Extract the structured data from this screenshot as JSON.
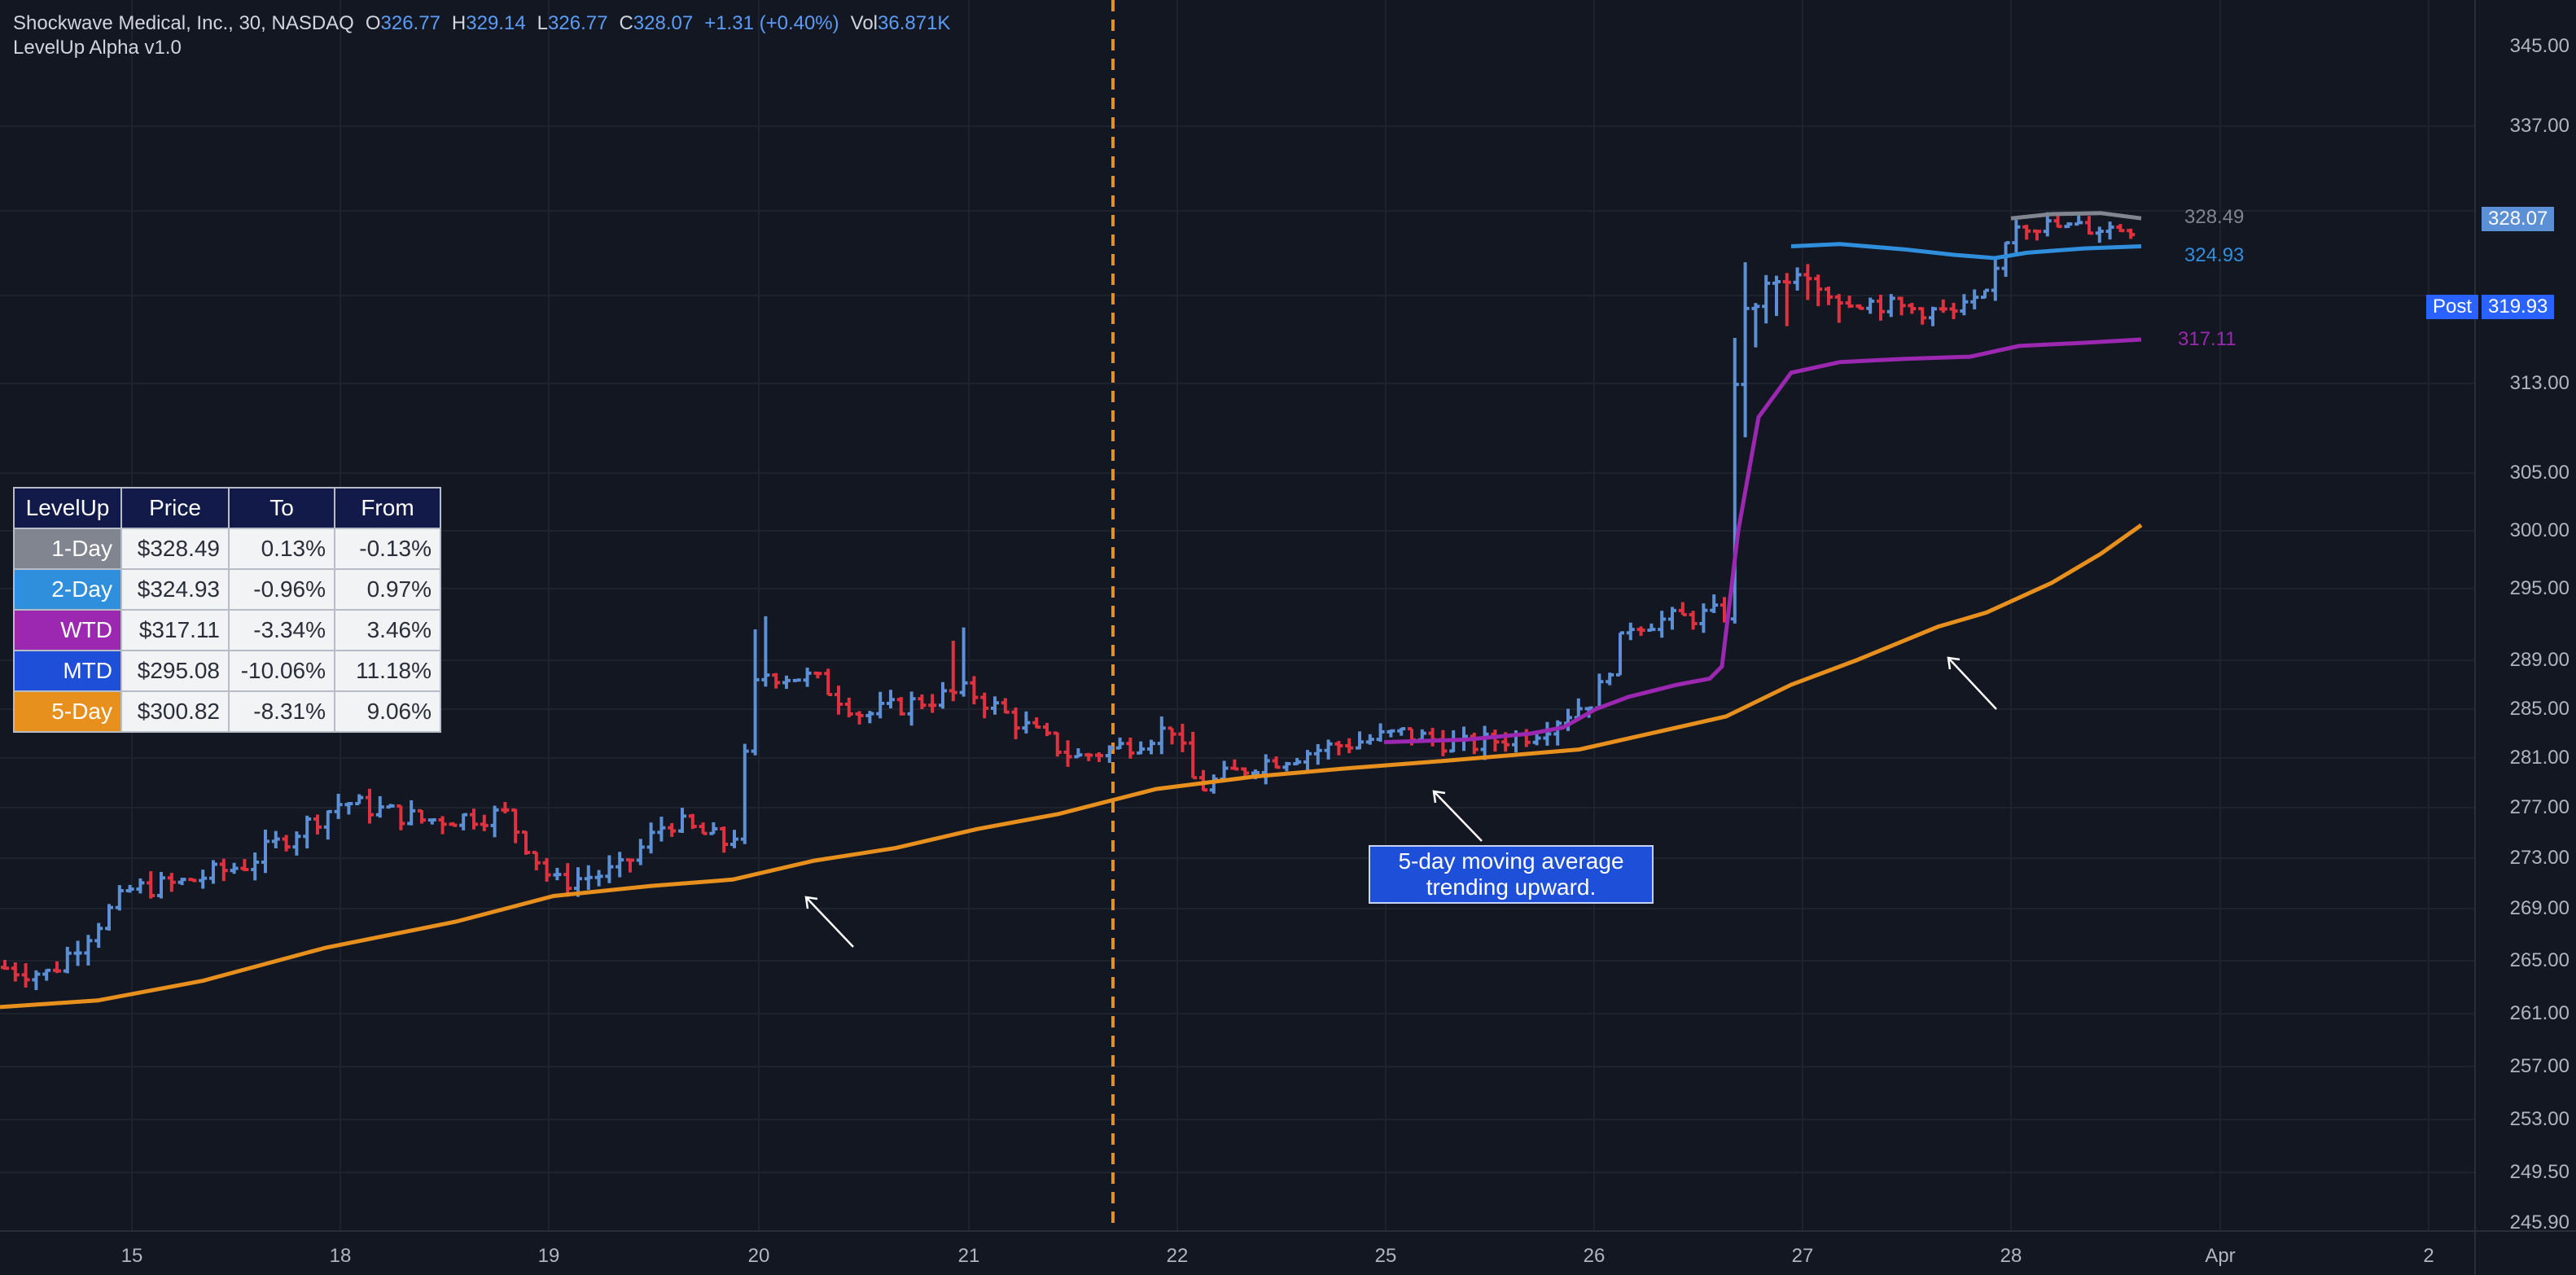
{
  "legend": {
    "symbol": "Shockwave Medical, Inc., 30, NASDAQ",
    "open_label": "O",
    "open": "326.77",
    "high_label": "H",
    "high": "329.14",
    "low_label": "L",
    "low": "326.77",
    "close_label": "C",
    "close": "328.07",
    "change": "+1.31 (+0.40%)",
    "vol_label": "Vol",
    "vol": "36.871K",
    "indicator": "LevelUp Alpha v1.0"
  },
  "table": {
    "headers": [
      "LevelUp",
      "Price",
      "To",
      "From"
    ],
    "rows": [
      {
        "name": "1-Day",
        "color": "#808590",
        "price": "$328.49",
        "to": "0.13%",
        "from": "-0.13%"
      },
      {
        "name": "2-Day",
        "color": "#2f8fdc",
        "price": "$324.93",
        "to": "-0.96%",
        "from": "0.97%"
      },
      {
        "name": "WTD",
        "color": "#9c27b0",
        "price": "$317.11",
        "to": "-3.34%",
        "from": "3.46%"
      },
      {
        "name": "MTD",
        "color": "#1e4fd8",
        "price": "$295.08",
        "to": "-10.06%",
        "from": "11.18%"
      },
      {
        "name": "5-Day",
        "color": "#e8901e",
        "price": "$300.82",
        "to": "-8.31%",
        "from": "9.06%"
      }
    ]
  },
  "annotation": {
    "line1": "5-day moving average",
    "line2": "trending upward."
  },
  "price_axis": {
    "ticks": [
      "345.00",
      "337.00",
      "313.00",
      "305.00",
      "300.00",
      "295.00",
      "289.00",
      "285.00",
      "281.00",
      "277.00",
      "273.00",
      "269.00",
      "265.00",
      "261.00",
      "257.00",
      "253.00",
      "249.50",
      "245.90"
    ],
    "last_price": "328.07",
    "post_label": "Post",
    "post_price": "319.93"
  },
  "time_axis": {
    "labels": [
      "15",
      "18",
      "19",
      "20",
      "21",
      "22",
      "25",
      "26",
      "27",
      "28",
      "Apr",
      "2"
    ]
  },
  "line_labels": {
    "one_day": "328.49",
    "two_day": "324.93",
    "wtd": "317.11"
  },
  "colors": {
    "background": "#131722",
    "up": "#5b8fd6",
    "down": "#e0323e",
    "ma_5day": "#e8901e",
    "wtd": "#9c27b0",
    "two_day": "#2f8fdc",
    "one_day": "#808590",
    "session_line": "#e8901e",
    "price_badge": "#5b8fd6",
    "post_badge": "#2962ff"
  },
  "chart_data": {
    "type": "line",
    "x": [
      "15",
      "18",
      "19",
      "20",
      "21",
      "22",
      "25",
      "26",
      "27",
      "28"
    ],
    "series": [
      {
        "name": "5-Day",
        "values": [
          261.5,
          265.5,
          269.5,
          271.5,
          276.0,
          279.0,
          280.5,
          282.0,
          287.0,
          295.0
        ]
      },
      {
        "name": "WTD",
        "values": [
          null,
          null,
          null,
          null,
          null,
          null,
          282.0,
          284.5,
          313.0,
          316.5
        ]
      },
      {
        "name": "2-Day",
        "values": [
          null,
          null,
          null,
          null,
          null,
          null,
          null,
          null,
          323.5,
          324.0
        ]
      },
      {
        "name": "1-Day",
        "values": [
          null,
          null,
          null,
          null,
          null,
          null,
          null,
          null,
          null,
          327.5
        ]
      },
      {
        "name": "Price",
        "values": [
          264.5,
          272.5,
          273.0,
          287.0,
          283.0,
          278.5,
          282.5,
          292.0,
          323.0,
          328.07
        ]
      }
    ],
    "ylim": [
      245.9,
      345.0
    ],
    "grid": true
  }
}
